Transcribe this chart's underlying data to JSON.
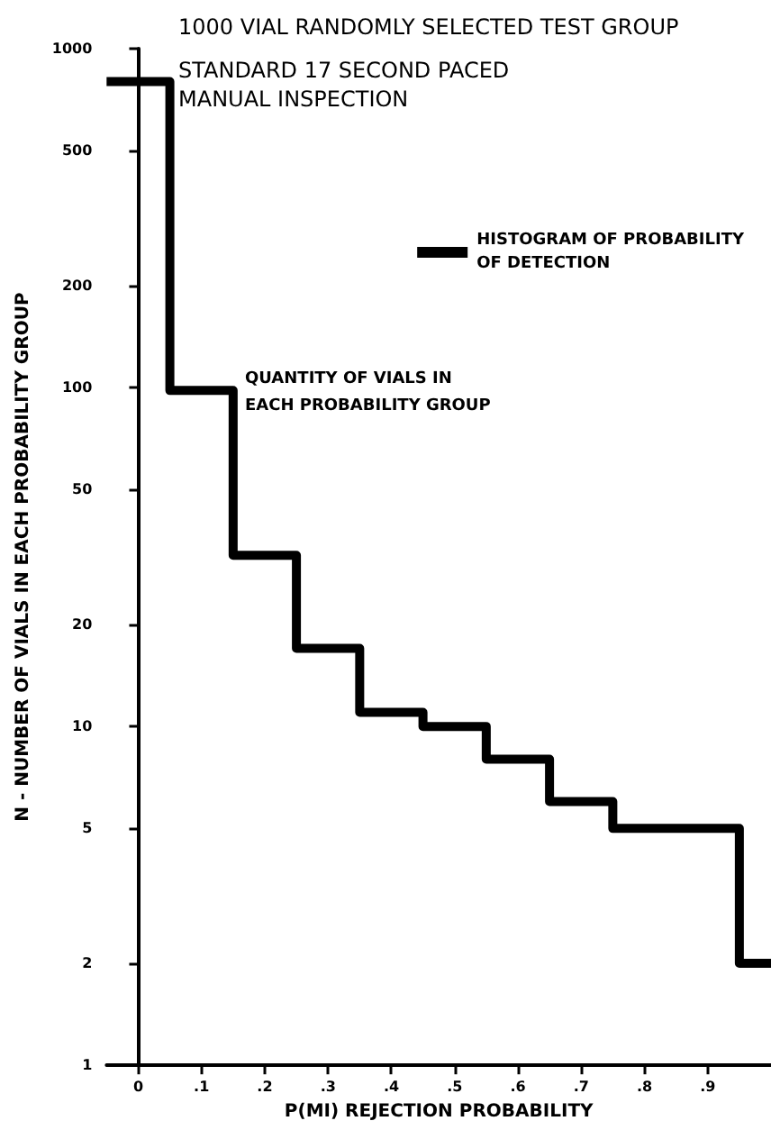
{
  "chart_data": {
    "type": "histogram",
    "title": "1000 VIAL RANDOMLY SELECTED TEST GROUP",
    "subtitle": "STANDARD 17 SECOND PACED\nMANUAL INSPECTION",
    "xlabel": "P(MI) REJECTION PROBABILITY",
    "ylabel": "N - NUMBER OF VIALS IN EACH PROBABILITY GROUP",
    "annotations": [
      "QUANTITY OF VIALS IN\nEACH PROBABILITY GROUP"
    ],
    "series": [
      {
        "name": "HISTOGRAM OF PROBABILITY\nOF DETECTION",
        "color": "#000000",
        "values": [
          800,
          98,
          32,
          17,
          11,
          10,
          8,
          6,
          5,
          5,
          2
        ]
      }
    ],
    "bins": [
      -0.05,
      0.05,
      0.15,
      0.25,
      0.35,
      0.45,
      0.55,
      0.65,
      0.75,
      0.85,
      0.95,
      1.0
    ],
    "xlim": [
      -0.05,
      1.0
    ],
    "xticks": [
      {
        "value": 0,
        "label": "0"
      },
      {
        "value": 0.1,
        "label": ".1"
      },
      {
        "value": 0.2,
        "label": ".2"
      },
      {
        "value": 0.3,
        "label": ".3"
      },
      {
        "value": 0.4,
        "label": ".4"
      },
      {
        "value": 0.5,
        "label": ".5"
      },
      {
        "value": 0.6,
        "label": ".6"
      },
      {
        "value": 0.7,
        "label": ".7"
      },
      {
        "value": 0.8,
        "label": ".8"
      },
      {
        "value": 0.9,
        "label": ".9"
      }
    ],
    "ylim": [
      1,
      1000
    ],
    "yticks": [
      1,
      2,
      5,
      10,
      20,
      50,
      100,
      200,
      500,
      1000
    ],
    "log": "y",
    "legend": "top right",
    "line_style": "solid",
    "marker": "none"
  }
}
